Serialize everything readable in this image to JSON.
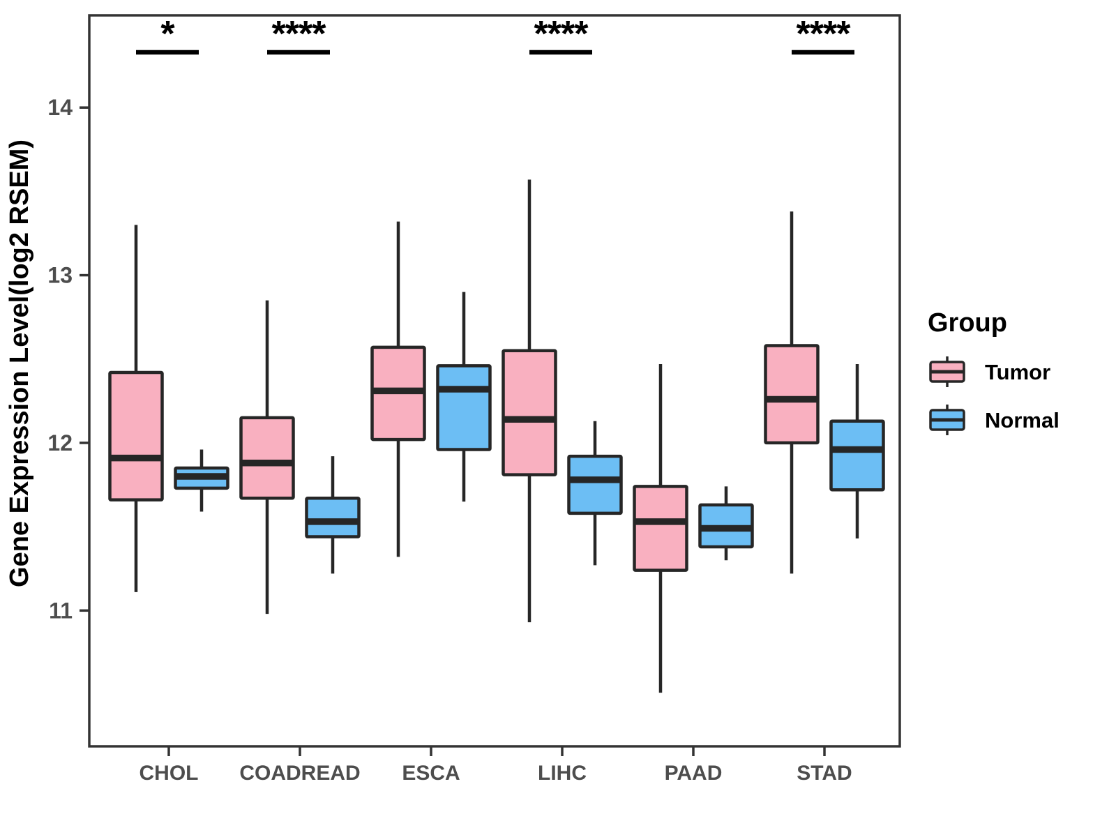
{
  "chart_data": {
    "type": "boxplot",
    "title": "",
    "xlabel": "",
    "ylabel": "Gene Expression Level(log2 RSEM)",
    "ylim": [
      10.19,
      14.55
    ],
    "yticks": [
      11,
      12,
      13,
      14
    ],
    "grid": false,
    "legend_position": "right",
    "legend_title": "Group",
    "categories": [
      "CHOL",
      "COADREAD",
      "ESCA",
      "LIHC",
      "PAAD",
      "STAD"
    ],
    "groups": [
      {
        "name": "Tumor",
        "fill": "#F9B0C0",
        "stroke": "#262626"
      },
      {
        "name": "Normal",
        "fill": "#6CBEF4",
        "stroke": "#262626"
      }
    ],
    "series": [
      {
        "name": "Tumor",
        "boxes": [
          {
            "category": "CHOL",
            "low": 11.11,
            "q1": 11.66,
            "median": 11.91,
            "q3": 12.42,
            "high": 13.3
          },
          {
            "category": "COADREAD",
            "low": 10.98,
            "q1": 11.67,
            "median": 11.88,
            "q3": 12.15,
            "high": 12.85
          },
          {
            "category": "ESCA",
            "low": 11.32,
            "q1": 12.02,
            "median": 12.31,
            "q3": 12.57,
            "high": 13.32
          },
          {
            "category": "LIHC",
            "low": 10.93,
            "q1": 11.81,
            "median": 12.14,
            "q3": 12.55,
            "high": 13.57
          },
          {
            "category": "PAAD",
            "low": 10.51,
            "q1": 11.24,
            "median": 11.53,
            "q3": 11.74,
            "high": 12.47
          },
          {
            "category": "STAD",
            "low": 11.22,
            "q1": 12.0,
            "median": 12.26,
            "q3": 12.58,
            "high": 13.38
          }
        ]
      },
      {
        "name": "Normal",
        "boxes": [
          {
            "category": "CHOL",
            "low": 11.59,
            "q1": 11.73,
            "median": 11.8,
            "q3": 11.85,
            "high": 11.96
          },
          {
            "category": "COADREAD",
            "low": 11.22,
            "q1": 11.44,
            "median": 11.53,
            "q3": 11.67,
            "high": 11.92
          },
          {
            "category": "ESCA",
            "low": 11.65,
            "q1": 11.96,
            "median": 12.32,
            "q3": 12.46,
            "high": 12.9
          },
          {
            "category": "LIHC",
            "low": 11.27,
            "q1": 11.58,
            "median": 11.78,
            "q3": 11.92,
            "high": 12.13
          },
          {
            "category": "PAAD",
            "low": 11.3,
            "q1": 11.38,
            "median": 11.49,
            "q3": 11.63,
            "high": 11.74
          },
          {
            "category": "STAD",
            "low": 11.43,
            "q1": 11.72,
            "median": 11.96,
            "q3": 12.13,
            "high": 12.47
          }
        ]
      }
    ],
    "significance": [
      {
        "category": "CHOL",
        "label": "*"
      },
      {
        "category": "COADREAD",
        "label": "****"
      },
      {
        "category": "LIHC",
        "label": "****"
      },
      {
        "category": "STAD",
        "label": "****"
      }
    ],
    "colors": {
      "box_stroke": "#262626",
      "axis_line": "#333333",
      "tick_text": "#4D4D4D",
      "title_text": "#000000",
      "annotation": "#000000"
    }
  }
}
